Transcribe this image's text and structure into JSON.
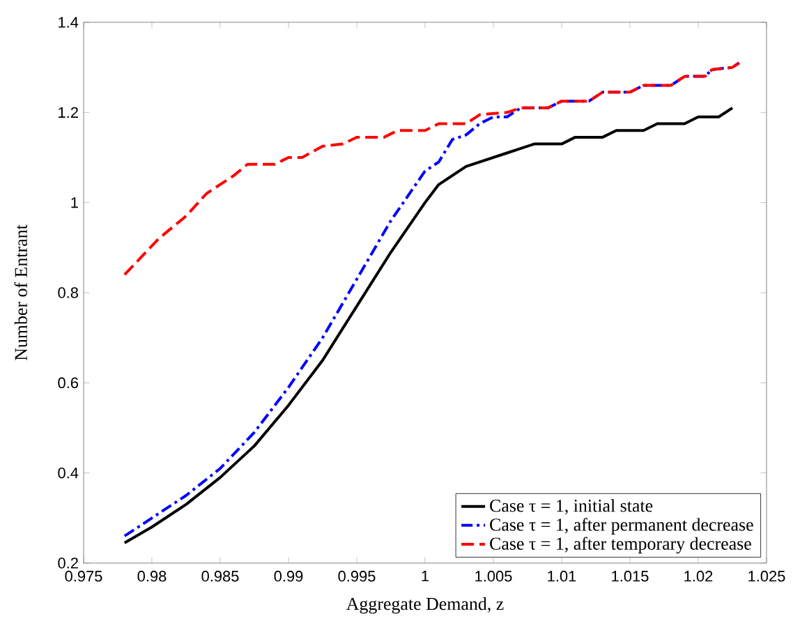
{
  "chart_data": {
    "type": "line",
    "xlabel": "Aggregate Demand, z",
    "ylabel": "Number of Entrant",
    "xlim": [
      0.975,
      1.025
    ],
    "ylim": [
      0.2,
      1.4
    ],
    "xticks": [
      0.975,
      0.98,
      0.985,
      0.99,
      0.995,
      1,
      1.005,
      1.01,
      1.015,
      1.02,
      1.025
    ],
    "yticks": [
      0.2,
      0.4,
      0.6,
      0.8,
      1,
      1.2,
      1.4
    ],
    "grid": false,
    "legend": "bottom right",
    "marker": "none",
    "series": [
      {
        "name": "Case τ = 1, initial state",
        "color": "#000000",
        "line_style": "solid",
        "x": [
          0.978,
          0.98,
          0.9825,
          0.985,
          0.9875,
          0.99,
          0.9925,
          0.995,
          0.9975,
          1.0,
          1.001,
          1.003,
          1.004,
          1.005,
          1.006,
          1.008,
          1.01,
          1.011,
          1.013,
          1.014,
          1.016,
          1.017,
          1.019,
          1.02,
          1.0215,
          1.0225
        ],
        "values": [
          0.245,
          0.28,
          0.33,
          0.39,
          0.46,
          0.55,
          0.65,
          0.77,
          0.89,
          1.0,
          1.04,
          1.08,
          1.09,
          1.1,
          1.11,
          1.13,
          1.13,
          1.145,
          1.145,
          1.16,
          1.16,
          1.175,
          1.175,
          1.19,
          1.19,
          1.21
        ]
      },
      {
        "name": "Case τ = 1, after permanent decrease",
        "color": "#0000ff",
        "line_style": "dashdot",
        "x": [
          0.978,
          0.98,
          0.9825,
          0.985,
          0.9875,
          0.99,
          0.9925,
          0.995,
          0.9975,
          1.0,
          1.001,
          1.002,
          1.003,
          1.004,
          1.005,
          1.006,
          1.007,
          1.009,
          1.01,
          1.012,
          1.013,
          1.015,
          1.016,
          1.018,
          1.019,
          1.0205,
          1.021,
          1.0225,
          1.023
        ],
        "values": [
          0.26,
          0.3,
          0.35,
          0.41,
          0.49,
          0.59,
          0.7,
          0.83,
          0.96,
          1.07,
          1.09,
          1.14,
          1.15,
          1.175,
          1.19,
          1.19,
          1.21,
          1.21,
          1.225,
          1.225,
          1.245,
          1.245,
          1.26,
          1.26,
          1.28,
          1.28,
          1.295,
          1.3,
          1.31
        ]
      },
      {
        "name": "Case τ = 1, after temporary decrease",
        "color": "#ff0000",
        "line_style": "dashed",
        "x": [
          0.978,
          0.9805,
          0.9825,
          0.984,
          0.986,
          0.987,
          0.989,
          0.99,
          0.991,
          0.9925,
          0.994,
          0.995,
          0.997,
          0.998,
          1.0,
          1.001,
          1.003,
          1.004,
          1.006,
          1.007,
          1.009,
          1.01,
          1.012,
          1.013,
          1.015,
          1.016,
          1.018,
          1.019,
          1.0205,
          1.021,
          1.0225,
          1.023
        ],
        "values": [
          0.84,
          0.92,
          0.97,
          1.02,
          1.06,
          1.085,
          1.085,
          1.1,
          1.1,
          1.125,
          1.13,
          1.145,
          1.145,
          1.16,
          1.16,
          1.175,
          1.175,
          1.195,
          1.2,
          1.21,
          1.21,
          1.225,
          1.225,
          1.245,
          1.245,
          1.26,
          1.26,
          1.28,
          1.28,
          1.295,
          1.3,
          1.31
        ]
      }
    ]
  }
}
